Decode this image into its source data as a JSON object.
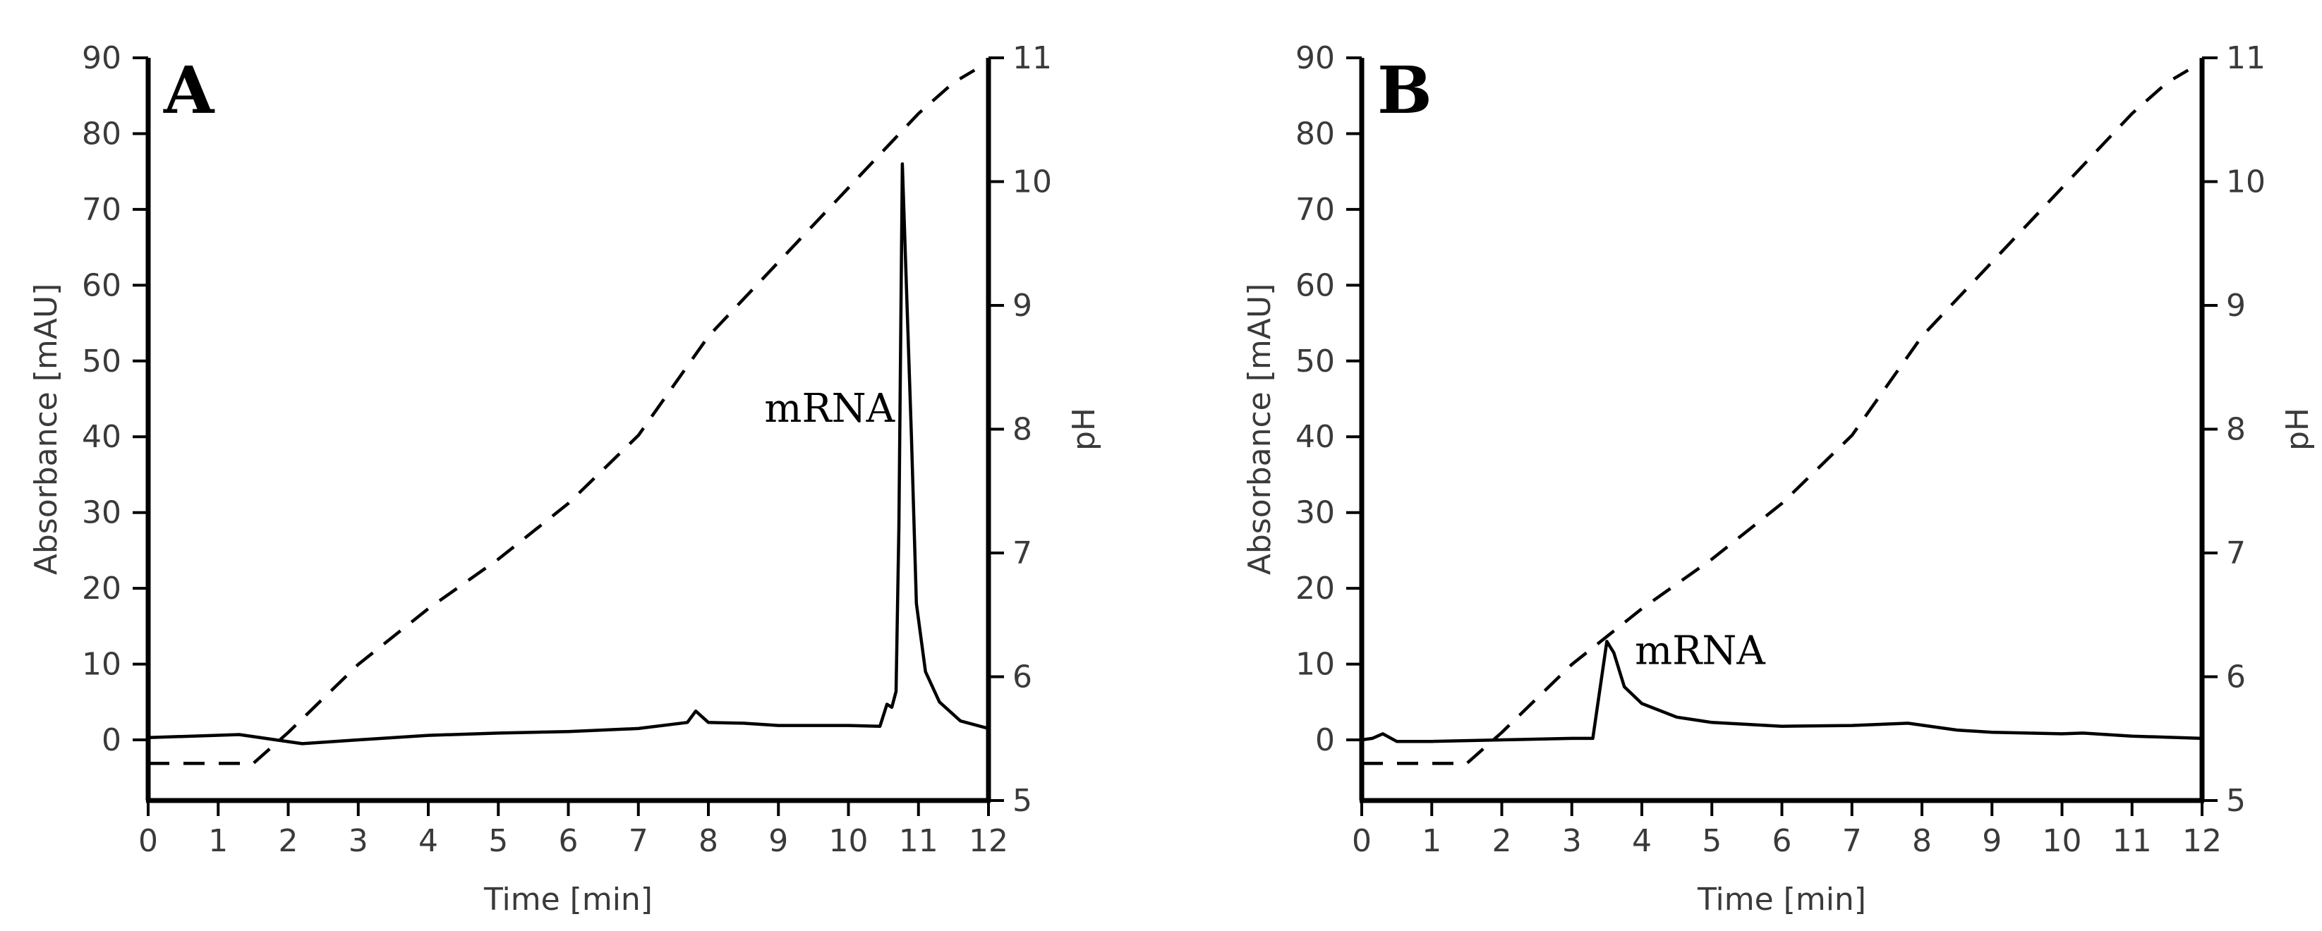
{
  "chart_data": [
    {
      "type": "line",
      "panel_label": "A",
      "xlabel": "Time [min]",
      "ylabel": "Absorbance [mAU]",
      "y2label": "pH",
      "xlim": [
        0,
        12
      ],
      "ylim": [
        -8,
        90
      ],
      "y2lim": [
        5,
        11
      ],
      "x_ticks": [
        0,
        1,
        2,
        3,
        4,
        5,
        6,
        7,
        8,
        9,
        10,
        11,
        12
      ],
      "y_ticks": [
        0,
        10,
        20,
        30,
        40,
        50,
        60,
        70,
        80,
        90
      ],
      "y2_ticks": [
        5,
        6,
        7,
        8,
        9,
        10,
        11
      ],
      "grid": false,
      "annotation": {
        "text": "mRNA",
        "x": 8.8,
        "y": 42
      },
      "series": [
        {
          "name": "Absorbance",
          "axis": "left",
          "style": "solid",
          "x": [
            0,
            1.3,
            2.2,
            3,
            4,
            5,
            6,
            7,
            7.7,
            7.82,
            8.0,
            8.5,
            9,
            10,
            10.45,
            10.55,
            10.62,
            10.68,
            10.72,
            10.77,
            10.82,
            10.9,
            10.97,
            11.1,
            11.3,
            11.6,
            12
          ],
          "values": [
            0.3,
            0.7,
            -0.5,
            0,
            0.6,
            0.9,
            1.1,
            1.5,
            2.3,
            3.8,
            2.3,
            2.2,
            1.9,
            1.9,
            1.8,
            4.7,
            4.3,
            6.4,
            28,
            76,
            62,
            40,
            18,
            9,
            5,
            2.5,
            1.5
          ]
        },
        {
          "name": "pH",
          "axis": "right",
          "style": "dashed",
          "x": [
            0,
            0.5,
            1.5,
            2,
            3,
            4,
            5,
            6,
            7,
            7.5,
            8,
            8.5,
            9,
            9.5,
            10,
            10.5,
            11,
            11.5,
            11.8
          ],
          "values": [
            5.3,
            5.3,
            5.3,
            5.55,
            6.1,
            6.55,
            6.95,
            7.4,
            7.95,
            8.35,
            8.75,
            9.05,
            9.35,
            9.65,
            9.95,
            10.25,
            10.55,
            10.8,
            10.9
          ]
        }
      ]
    },
    {
      "type": "line",
      "panel_label": "B",
      "xlabel": "Time [min]",
      "ylabel": "Absorbance [mAU]",
      "y2label": "pH",
      "xlim": [
        0,
        12
      ],
      "ylim": [
        -8,
        90
      ],
      "y2lim": [
        5,
        11
      ],
      "x_ticks": [
        0,
        1,
        2,
        3,
        4,
        5,
        6,
        7,
        8,
        9,
        10,
        11,
        12
      ],
      "y_ticks": [
        0,
        10,
        20,
        30,
        40,
        50,
        60,
        70,
        80,
        90
      ],
      "y2_ticks": [
        5,
        6,
        7,
        8,
        9,
        10,
        11
      ],
      "grid": false,
      "annotation": {
        "text": "mRNA",
        "x": 3.9,
        "y": 10
      },
      "series": [
        {
          "name": "Absorbance",
          "axis": "left",
          "style": "solid",
          "x": [
            0,
            0.15,
            0.3,
            0.5,
            1,
            2,
            3,
            3.3,
            3.5,
            3.6,
            3.75,
            4,
            4.5,
            5,
            6,
            7,
            7.8,
            8.5,
            9,
            10,
            10.3,
            11,
            12
          ],
          "values": [
            0,
            0.2,
            0.8,
            -0.2,
            -0.2,
            0,
            0.2,
            0.2,
            13,
            11.5,
            7,
            4.8,
            3,
            2.3,
            1.8,
            1.9,
            2.2,
            1.3,
            1,
            0.8,
            0.9,
            0.5,
            0.2
          ]
        },
        {
          "name": "pH",
          "axis": "right",
          "style": "dashed",
          "x": [
            0,
            0.5,
            1.5,
            2,
            3,
            4,
            5,
            6,
            7,
            7.5,
            8,
            8.5,
            9,
            9.5,
            10,
            10.5,
            11,
            11.5,
            11.8
          ],
          "values": [
            5.3,
            5.3,
            5.3,
            5.55,
            6.1,
            6.55,
            6.95,
            7.4,
            7.95,
            8.35,
            8.75,
            9.05,
            9.35,
            9.65,
            9.95,
            10.25,
            10.55,
            10.8,
            10.9
          ]
        }
      ]
    }
  ]
}
